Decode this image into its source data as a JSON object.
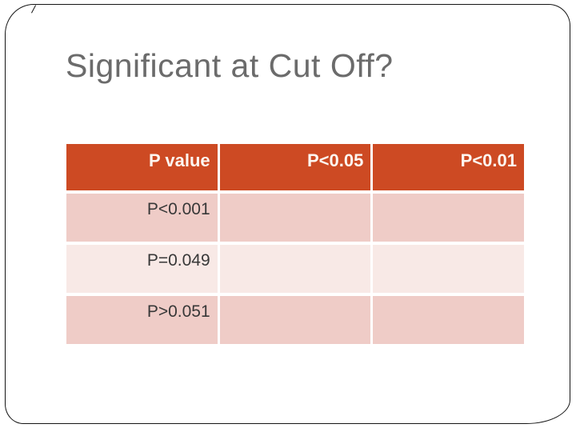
{
  "slide": {
    "title": "Significant at Cut Off?"
  },
  "table": {
    "header": [
      "P value",
      "P<0.05",
      "P<0.01"
    ],
    "rows": [
      [
        "P<0.001",
        "",
        ""
      ],
      [
        "P=0.049",
        "",
        ""
      ],
      [
        "P>0.051",
        "",
        ""
      ]
    ]
  },
  "colors": {
    "header_bg": "#cd4a23",
    "header_text": "#fdf6f0",
    "row_dark_bg": "#efccc7",
    "row_light_bg": "#f8e9e6",
    "body_text": "#383838",
    "title_text": "#6b6b6b",
    "frame_border": "#161616"
  }
}
